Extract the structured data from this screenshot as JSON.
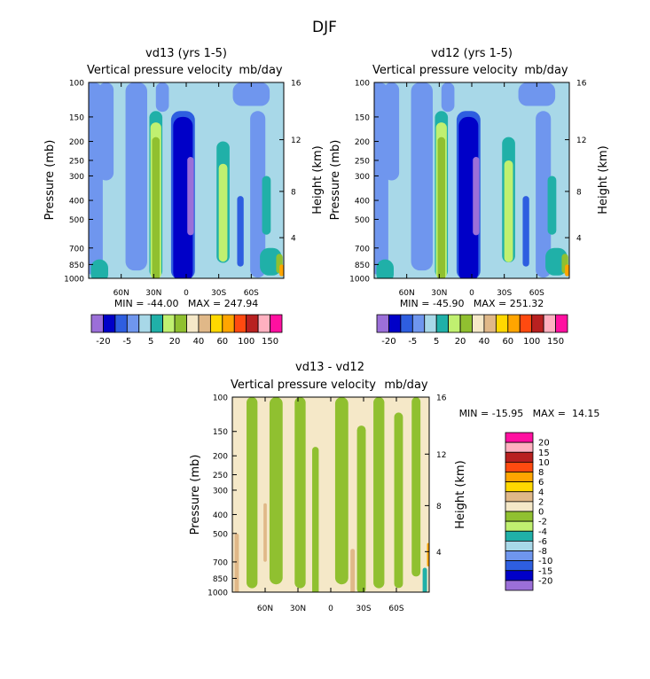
{
  "figure": {
    "title": "DJF"
  },
  "chart_data": [
    {
      "id": "vd13",
      "type": "heatmap",
      "title": "vd13 (yrs 1-5)",
      "subtitle": "Vertical pressure velocity",
      "units": "mb/day",
      "xlabel": "",
      "ylabel": "Pressure (mb)",
      "ylabel_right": "Height (km)",
      "x_tick_labels": [
        "60N",
        "30N",
        "0",
        "30S",
        "60S"
      ],
      "x_ticks_lat": [
        60,
        30,
        0,
        -30,
        -60
      ],
      "xlim": [
        90,
        -90
      ],
      "y_ticks": [
        100,
        150,
        200,
        250,
        300,
        400,
        500,
        700,
        850,
        1000
      ],
      "ylim": [
        1000,
        100
      ],
      "right_ticks": [
        {
          "label": "16",
          "p": 100
        },
        {
          "label": "12",
          "p": 196
        },
        {
          "label": "8",
          "p": 360
        },
        {
          "label": "4",
          "p": 620
        }
      ],
      "stats_text": "MIN = -44.00   MAX = 247.94",
      "min": -44.0,
      "max": 247.94,
      "colorbar_ticks": [
        "-20",
        "-5",
        "5",
        "20",
        "40",
        "60",
        "100",
        "150"
      ],
      "colorbar_colors": [
        "#9b6fd8",
        "#0000c8",
        "#2e5ee0",
        "#6f96ee",
        "#a8d8e8",
        "#20b0a8",
        "#c0f070",
        "#90c030",
        "#f5e8c8",
        "#e0b888",
        "#ffd800",
        "#ffa500",
        "#ff4a10",
        "#b82020",
        "#ffb0c0",
        "#ff10a0"
      ],
      "background": "#a8d8e8",
      "regions": [
        {
          "lat": 86,
          "p": 100,
          "w": 18,
          "h": 0.98,
          "c": "#6f96ee"
        },
        {
          "lat": 74,
          "p": 100,
          "w": 14,
          "h": 0.5,
          "c": "#6f96ee"
        },
        {
          "lat": 46,
          "p": 100,
          "w": 20,
          "h": 0.96,
          "c": "#6f96ee"
        },
        {
          "lat": 22,
          "p": 100,
          "w": 12,
          "h": 0.15,
          "c": "#6f96ee"
        },
        {
          "lat": -60,
          "p": 100,
          "w": 34,
          "h": 0.12,
          "c": "#6f96ee"
        },
        {
          "lat": -66,
          "p": 140,
          "w": 14,
          "h": 0.85,
          "c": "#6f96ee"
        },
        {
          "lat": 28,
          "p": 140,
          "w": 12,
          "h": 0.85,
          "c": "#20b0a8"
        },
        {
          "lat": 28,
          "p": 160,
          "w": 10,
          "h": 0.8,
          "c": "#c0f070"
        },
        {
          "lat": 28,
          "p": 190,
          "w": 7,
          "h": 0.74,
          "c": "#90c030"
        },
        {
          "lat": 3,
          "p": 140,
          "w": 22,
          "h": 0.86,
          "c": "#2e5ee0"
        },
        {
          "lat": 3,
          "p": 150,
          "w": 18,
          "h": 0.84,
          "c": "#0000c8"
        },
        {
          "lat": -4,
          "p": 240,
          "w": 6,
          "h": 0.4,
          "c": "#9b6fd8"
        },
        {
          "lat": -34,
          "p": 200,
          "w": 12,
          "h": 0.62,
          "c": "#20b0a8"
        },
        {
          "lat": -34,
          "p": 260,
          "w": 8,
          "h": 0.5,
          "c": "#c0f070"
        },
        {
          "lat": -50,
          "p": 380,
          "w": 6,
          "h": 0.36,
          "c": "#2e5ee0"
        },
        {
          "lat": -74,
          "p": 300,
          "w": 8,
          "h": 0.3,
          "c": "#20b0a8"
        },
        {
          "lat": -78,
          "p": 700,
          "w": 20,
          "h": 0.14,
          "c": "#20b0a8"
        },
        {
          "lat": -86,
          "p": 750,
          "w": 6,
          "h": 0.1,
          "c": "#90c030"
        },
        {
          "lat": -88,
          "p": 850,
          "w": 4,
          "h": 0.06,
          "c": "#ffa500"
        },
        {
          "lat": 80,
          "p": 800,
          "w": 16,
          "h": 0.12,
          "c": "#20b0a8"
        }
      ]
    },
    {
      "id": "vd12",
      "type": "heatmap",
      "title": "vd12 (yrs 1-5)",
      "subtitle": "Vertical pressure velocity",
      "units": "mb/day",
      "xlabel": "",
      "ylabel": "Pressure (mb)",
      "ylabel_right": "Height (km)",
      "x_tick_labels": [
        "60N",
        "30N",
        "0",
        "30S",
        "60S"
      ],
      "x_ticks_lat": [
        60,
        30,
        0,
        -30,
        -60
      ],
      "xlim": [
        90,
        -90
      ],
      "y_ticks": [
        100,
        150,
        200,
        250,
        300,
        400,
        500,
        700,
        850,
        1000
      ],
      "ylim": [
        1000,
        100
      ],
      "right_ticks": [
        {
          "label": "16",
          "p": 100
        },
        {
          "label": "12",
          "p": 196
        },
        {
          "label": "8",
          "p": 360
        },
        {
          "label": "4",
          "p": 620
        }
      ],
      "stats_text": "MIN = -45.90   MAX = 251.32",
      "min": -45.9,
      "max": 251.32,
      "colorbar_ticks": [
        "-20",
        "-5",
        "5",
        "20",
        "40",
        "60",
        "100",
        "150"
      ],
      "colorbar_colors": [
        "#9b6fd8",
        "#0000c8",
        "#2e5ee0",
        "#6f96ee",
        "#a8d8e8",
        "#20b0a8",
        "#c0f070",
        "#90c030",
        "#f5e8c8",
        "#e0b888",
        "#ffd800",
        "#ffa500",
        "#ff4a10",
        "#b82020",
        "#ffb0c0",
        "#ff10a0"
      ],
      "background": "#a8d8e8",
      "regions": [
        {
          "lat": 86,
          "p": 100,
          "w": 18,
          "h": 0.98,
          "c": "#6f96ee"
        },
        {
          "lat": 74,
          "p": 100,
          "w": 14,
          "h": 0.5,
          "c": "#6f96ee"
        },
        {
          "lat": 46,
          "p": 100,
          "w": 20,
          "h": 0.96,
          "c": "#6f96ee"
        },
        {
          "lat": 22,
          "p": 100,
          "w": 12,
          "h": 0.15,
          "c": "#6f96ee"
        },
        {
          "lat": -60,
          "p": 100,
          "w": 34,
          "h": 0.12,
          "c": "#6f96ee"
        },
        {
          "lat": -66,
          "p": 140,
          "w": 14,
          "h": 0.85,
          "c": "#6f96ee"
        },
        {
          "lat": 28,
          "p": 140,
          "w": 12,
          "h": 0.85,
          "c": "#20b0a8"
        },
        {
          "lat": 28,
          "p": 160,
          "w": 10,
          "h": 0.8,
          "c": "#c0f070"
        },
        {
          "lat": 28,
          "p": 190,
          "w": 7,
          "h": 0.74,
          "c": "#90c030"
        },
        {
          "lat": 3,
          "p": 140,
          "w": 22,
          "h": 0.86,
          "c": "#2e5ee0"
        },
        {
          "lat": 3,
          "p": 150,
          "w": 18,
          "h": 0.84,
          "c": "#0000c8"
        },
        {
          "lat": -4,
          "p": 240,
          "w": 6,
          "h": 0.4,
          "c": "#9b6fd8"
        },
        {
          "lat": -34,
          "p": 190,
          "w": 12,
          "h": 0.64,
          "c": "#20b0a8"
        },
        {
          "lat": -34,
          "p": 250,
          "w": 8,
          "h": 0.52,
          "c": "#c0f070"
        },
        {
          "lat": -50,
          "p": 380,
          "w": 6,
          "h": 0.36,
          "c": "#2e5ee0"
        },
        {
          "lat": -74,
          "p": 300,
          "w": 8,
          "h": 0.3,
          "c": "#20b0a8"
        },
        {
          "lat": -78,
          "p": 700,
          "w": 20,
          "h": 0.14,
          "c": "#20b0a8"
        },
        {
          "lat": -86,
          "p": 750,
          "w": 6,
          "h": 0.1,
          "c": "#90c030"
        },
        {
          "lat": -88,
          "p": 850,
          "w": 4,
          "h": 0.06,
          "c": "#ffa500"
        },
        {
          "lat": 80,
          "p": 800,
          "w": 16,
          "h": 0.12,
          "c": "#20b0a8"
        }
      ]
    },
    {
      "id": "diff",
      "type": "heatmap",
      "title": "vd13 - vd12",
      "subtitle": "Vertical pressure velocity",
      "units": "mb/day",
      "xlabel": "",
      "ylabel": "Pressure (mb)",
      "ylabel_right": "Height (km)",
      "x_tick_labels": [
        "60N",
        "30N",
        "0",
        "30S",
        "60S"
      ],
      "x_ticks_lat": [
        60,
        30,
        0,
        -30,
        -60
      ],
      "xlim": [
        90,
        -90
      ],
      "y_ticks": [
        100,
        150,
        200,
        250,
        300,
        400,
        500,
        700,
        850,
        1000
      ],
      "ylim": [
        1000,
        100
      ],
      "right_ticks": [
        {
          "label": "16",
          "p": 100
        },
        {
          "label": "12",
          "p": 196
        },
        {
          "label": "8",
          "p": 360
        },
        {
          "label": "4",
          "p": 620
        }
      ],
      "stats_text": "MIN = -15.95   MAX =  14.15",
      "min": -15.95,
      "max": 14.15,
      "colorbar_ticks": [
        "20",
        "15",
        "10",
        "8",
        "6",
        "4",
        "2",
        "0",
        "-2",
        "-4",
        "-6",
        "-8",
        "-10",
        "-15",
        "-20"
      ],
      "colorbar_colors": [
        "#ff10a0",
        "#ffb0c0",
        "#b82020",
        "#ff4a10",
        "#ffa500",
        "#ffd800",
        "#e0b888",
        "#f5e8c8",
        "#90c030",
        "#c0f070",
        "#20b0a8",
        "#a8d8e8",
        "#6f96ee",
        "#2e5ee0",
        "#0000c8",
        "#9b6fd8"
      ],
      "background": "#f5e8c8",
      "regions": [
        {
          "lat": 72,
          "p": 100,
          "w": 10,
          "h": 0.98,
          "c": "#90c030"
        },
        {
          "lat": 50,
          "p": 100,
          "w": 12,
          "h": 0.96,
          "c": "#90c030"
        },
        {
          "lat": 28,
          "p": 100,
          "w": 10,
          "h": 0.98,
          "c": "#90c030"
        },
        {
          "lat": 14,
          "p": 180,
          "w": 6,
          "h": 0.8,
          "c": "#90c030"
        },
        {
          "lat": -10,
          "p": 100,
          "w": 12,
          "h": 0.96,
          "c": "#90c030"
        },
        {
          "lat": -28,
          "p": 140,
          "w": 8,
          "h": 0.86,
          "c": "#90c030"
        },
        {
          "lat": -44,
          "p": 100,
          "w": 10,
          "h": 0.98,
          "c": "#90c030"
        },
        {
          "lat": -62,
          "p": 120,
          "w": 8,
          "h": 0.9,
          "c": "#90c030"
        },
        {
          "lat": -78,
          "p": 100,
          "w": 8,
          "h": 0.92,
          "c": "#90c030"
        },
        {
          "lat": 86,
          "p": 500,
          "w": 4,
          "h": 0.4,
          "c": "#e0b888"
        },
        {
          "lat": 60,
          "p": 350,
          "w": 3,
          "h": 0.3,
          "c": "#e0b888"
        },
        {
          "lat": -20,
          "p": 600,
          "w": 4,
          "h": 0.24,
          "c": "#e0b888"
        },
        {
          "lat": -86,
          "p": 750,
          "w": 4,
          "h": 0.14,
          "c": "#20b0a8"
        },
        {
          "lat": -89,
          "p": 560,
          "w": 2,
          "h": 0.12,
          "c": "#ffa500"
        }
      ]
    }
  ]
}
